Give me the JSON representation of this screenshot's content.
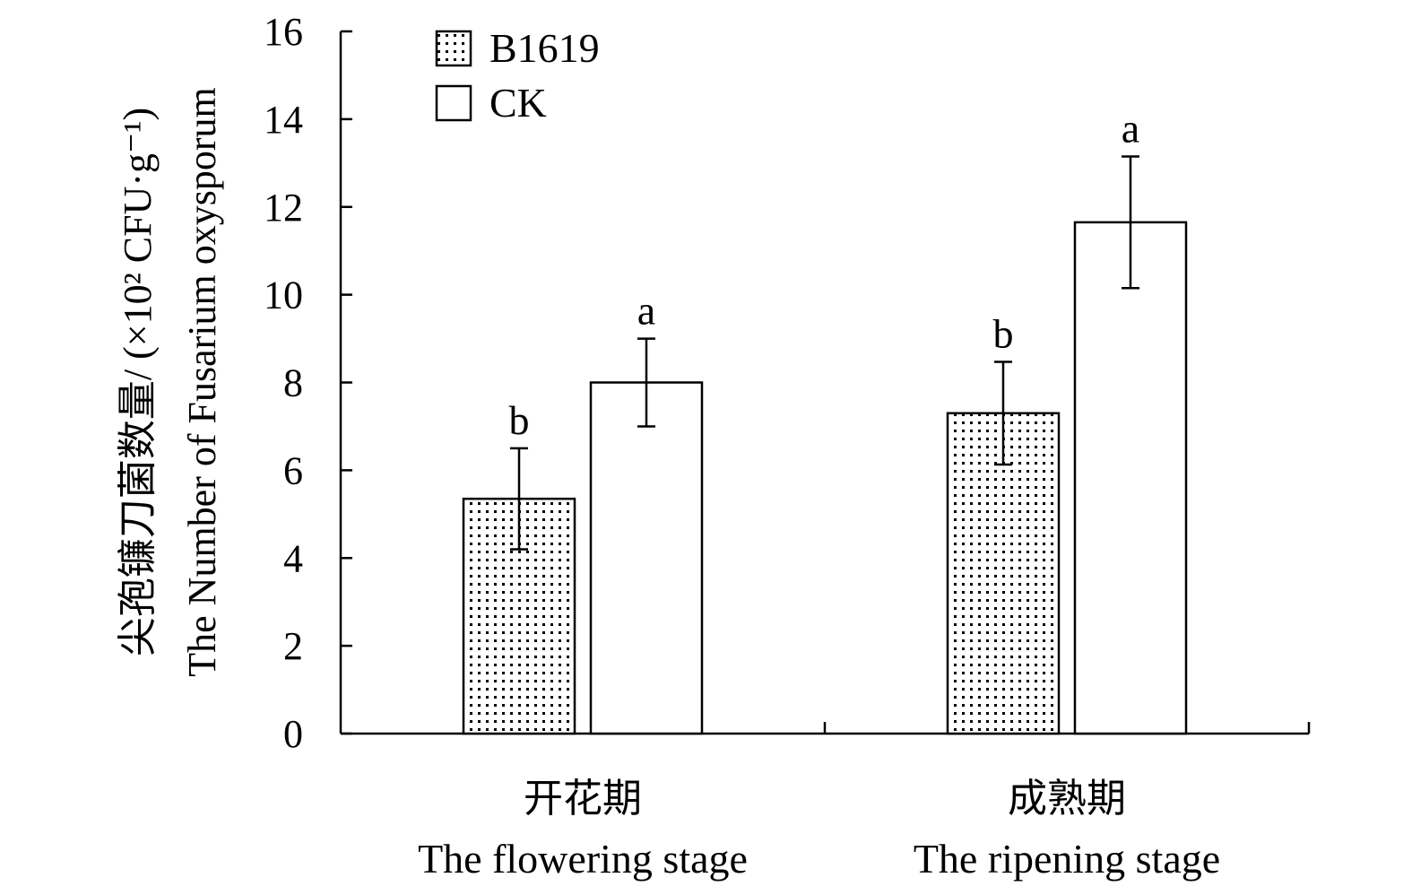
{
  "chart_data": {
    "type": "bar",
    "title": "",
    "ylabel_cn": "尖孢镰刀菌数量/ (×10² CFU·g⁻¹)",
    "ylabel_en": "The Number of Fusarium oxysporum",
    "ylim": [
      0,
      16
    ],
    "yticks": [
      0,
      2,
      4,
      6,
      8,
      10,
      12,
      14,
      16
    ],
    "categories": [
      {
        "cn": "开花期",
        "en": "The flowering stage"
      },
      {
        "cn": "成熟期",
        "en": "The ripening stage"
      }
    ],
    "series": [
      {
        "name": "B1619",
        "pattern": "dotted",
        "values": [
          5.35,
          7.3
        ],
        "errors": [
          1.15,
          1.17
        ],
        "labels": [
          "b",
          "b"
        ]
      },
      {
        "name": "CK",
        "pattern": "empty",
        "values": [
          8.0,
          11.65
        ],
        "errors": [
          1.0,
          1.5
        ],
        "labels": [
          "a",
          "a"
        ]
      }
    ],
    "legend_position": "top-left",
    "grid": false
  }
}
